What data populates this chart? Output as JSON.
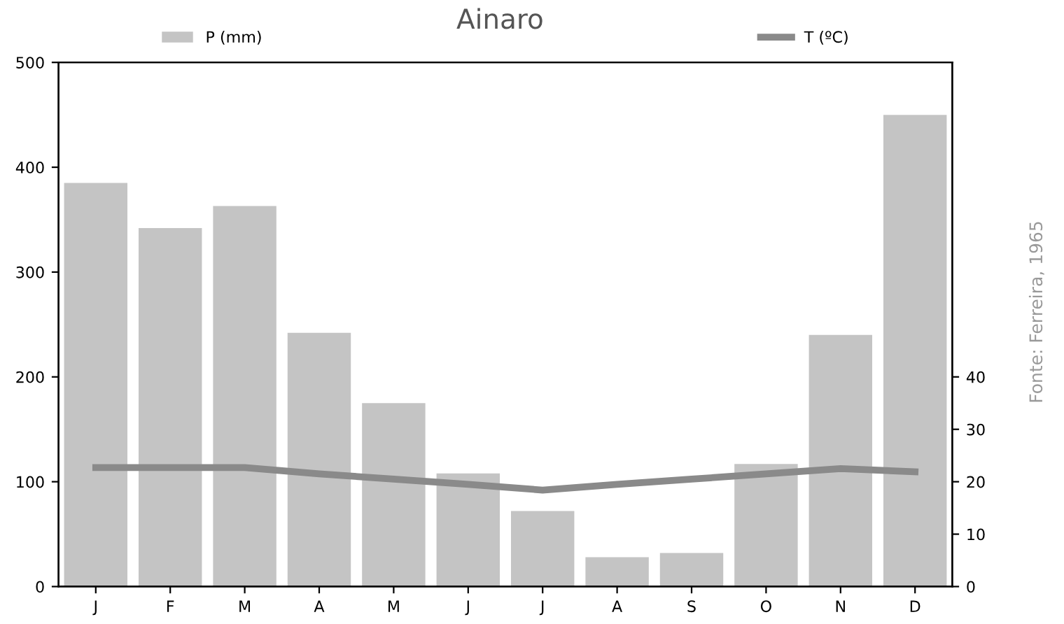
{
  "chart_data": {
    "type": "bar",
    "title": "Ainaro",
    "categories": [
      "J",
      "F",
      "M",
      "A",
      "M",
      "J",
      "J",
      "A",
      "S",
      "O",
      "N",
      "D"
    ],
    "series": [
      {
        "name": "P (mm)",
        "color": "#c4c4c4",
        "values": [
          385,
          342,
          363,
          242,
          175,
          108,
          72,
          28,
          32,
          117,
          240,
          450
        ]
      },
      {
        "name": "T (ºC)",
        "type": "line",
        "axis": "y2",
        "color": "#8a8a8a",
        "values": [
          22.7,
          22.7,
          22.7,
          21.5,
          20.5,
          19.5,
          18.4,
          19.5,
          20.5,
          21.5,
          22.5,
          21.9
        ]
      }
    ],
    "ylim": [
      0,
      500
    ],
    "yticks": [
      0,
      100,
      200,
      300,
      400,
      500
    ],
    "y2lim": [
      0,
      100
    ],
    "y2ticks": [
      0,
      10,
      20,
      30,
      40
    ],
    "legend": "top",
    "grid": false,
    "marker": "none",
    "line_style": "solid",
    "annotations": [
      "Fonte: Ferreira, 1965"
    ]
  }
}
